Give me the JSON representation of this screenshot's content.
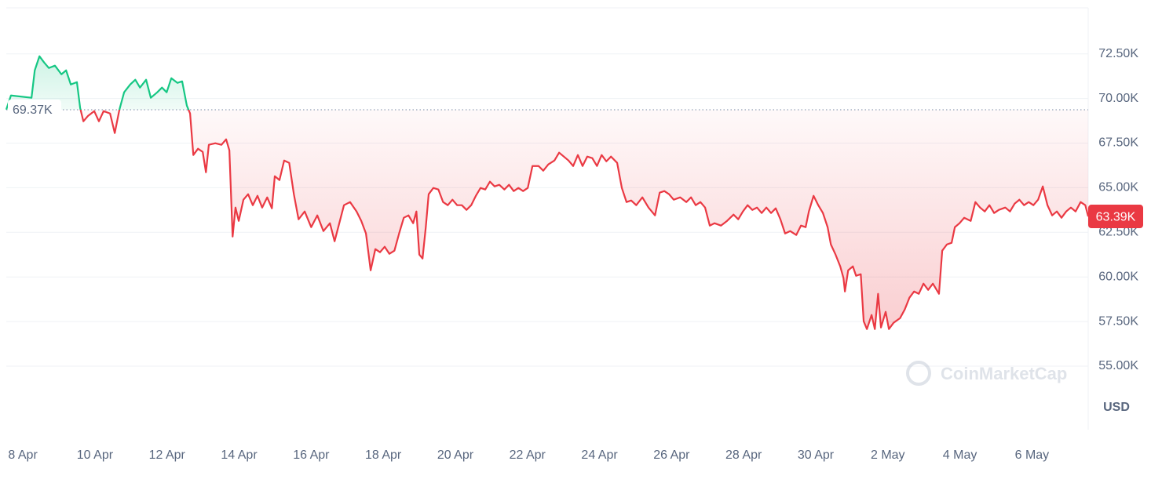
{
  "chart_data": {
    "type": "line",
    "x": [
      -0.46,
      -0.33,
      0.24,
      0.33,
      0.46,
      0.59,
      0.72,
      0.89,
      1.07,
      1.2,
      1.33,
      1.5,
      1.59,
      1.68,
      1.81,
      1.98,
      2.11,
      2.24,
      2.42,
      2.55,
      2.68,
      2.81,
      2.98,
      3.12,
      3.25,
      3.42,
      3.55,
      3.73,
      3.86,
      3.99,
      4.12,
      4.29,
      4.42,
      4.55,
      4.64,
      4.73,
      4.86,
      4.99,
      5.08,
      5.16,
      5.34,
      5.51,
      5.64,
      5.73,
      5.82,
      5.9,
      5.99,
      6.12,
      6.25,
      6.38,
      6.51,
      6.64,
      6.78,
      6.91,
      6.99,
      7.12,
      7.25,
      7.39,
      7.52,
      7.65,
      7.82,
      8.0,
      8.17,
      8.34,
      8.52,
      8.65,
      8.78,
      8.91,
      9.08,
      9.26,
      9.39,
      9.52,
      9.65,
      9.78,
      9.91,
      10.04,
      10.17,
      10.31,
      10.44,
      10.57,
      10.7,
      10.83,
      10.92,
      11.0,
      11.09,
      11.18,
      11.26,
      11.39,
      11.53,
      11.66,
      11.79,
      11.92,
      12.05,
      12.18,
      12.31,
      12.44,
      12.57,
      12.7,
      12.83,
      12.96,
      13.09,
      13.22,
      13.36,
      13.49,
      13.62,
      13.75,
      13.88,
      14.01,
      14.14,
      14.31,
      14.44,
      14.58,
      14.75,
      14.88,
      15.01,
      15.14,
      15.27,
      15.4,
      15.53,
      15.66,
      15.8,
      15.93,
      16.06,
      16.19,
      16.32,
      16.49,
      16.62,
      16.75,
      16.88,
      17.02,
      17.19,
      17.36,
      17.54,
      17.67,
      17.8,
      17.93,
      18.06,
      18.24,
      18.41,
      18.54,
      18.67,
      18.8,
      18.93,
      19.06,
      19.19,
      19.37,
      19.54,
      19.72,
      19.85,
      19.98,
      20.11,
      20.24,
      20.37,
      20.5,
      20.63,
      20.76,
      20.89,
      21.02,
      21.15,
      21.29,
      21.46,
      21.59,
      21.72,
      21.81,
      21.94,
      22.07,
      22.2,
      22.33,
      22.42,
      22.55,
      22.68,
      22.77,
      22.81,
      22.9,
      23.03,
      23.12,
      23.25,
      23.33,
      23.42,
      23.55,
      23.64,
      23.73,
      23.81,
      23.94,
      24.03,
      24.16,
      24.34,
      24.47,
      24.6,
      24.73,
      24.86,
      24.99,
      25.12,
      25.25,
      25.42,
      25.51,
      25.64,
      25.77,
      25.86,
      25.99,
      26.12,
      26.3,
      26.43,
      26.56,
      26.69,
      26.82,
      26.95,
      27.08,
      27.26,
      27.39,
      27.52,
      27.65,
      27.78,
      27.91,
      28.04,
      28.17,
      28.3,
      28.43,
      28.56,
      28.69,
      28.82,
      28.95,
      29.08,
      29.21,
      29.35,
      29.48,
      29.56
    ],
    "values": [
      69380,
      70171,
      70040,
      71577,
      72368,
      72017,
      71709,
      71841,
      71357,
      71577,
      70786,
      70918,
      69468,
      68721,
      69029,
      69292,
      68721,
      69292,
      69160,
      68062,
      69380,
      70347,
      70786,
      71050,
      70611,
      71050,
      70040,
      70347,
      70611,
      70347,
      71138,
      70874,
      70962,
      69600,
      69160,
      66832,
      67184,
      67009,
      65865,
      67403,
      67491,
      67403,
      67711,
      67095,
      62262,
      63888,
      63141,
      64327,
      64635,
      64020,
      64547,
      63888,
      64459,
      63844,
      65645,
      65426,
      66524,
      66393,
      64635,
      63229,
      63668,
      62789,
      63449,
      62569,
      63009,
      61998,
      63009,
      64020,
      64196,
      63668,
      63141,
      62437,
      60372,
      61559,
      61383,
      61691,
      61295,
      61471,
      62437,
      63317,
      63449,
      63009,
      63668,
      61251,
      61031,
      62789,
      64635,
      64987,
      64899,
      64196,
      64020,
      64327,
      64020,
      64020,
      63756,
      64020,
      64547,
      64987,
      64899,
      65338,
      65074,
      65162,
      64899,
      65162,
      64811,
      64987,
      64811,
      64987,
      66216,
      66216,
      65953,
      66305,
      66524,
      66964,
      66744,
      66524,
      66216,
      66832,
      66216,
      66744,
      66656,
      66216,
      66832,
      66480,
      66744,
      66393,
      64987,
      64196,
      64284,
      64020,
      64459,
      63888,
      63449,
      64723,
      64811,
      64635,
      64327,
      64459,
      64196,
      64459,
      64020,
      64196,
      63888,
      62877,
      63009,
      62877,
      63141,
      63492,
      63229,
      63668,
      64020,
      63756,
      63888,
      63580,
      63888,
      63580,
      63844,
      63229,
      62437,
      62569,
      62350,
      62877,
      62789,
      63668,
      64547,
      64020,
      63580,
      62789,
      61822,
      61251,
      60592,
      59933,
      59186,
      60372,
      60592,
      60065,
      60153,
      57517,
      57077,
      57868,
      57077,
      59054,
      57165,
      58044,
      57077,
      57429,
      57692,
      58176,
      58835,
      59186,
      59054,
      59625,
      59274,
      59625,
      59054,
      61471,
      61822,
      61910,
      62789,
      63009,
      63317,
      63141,
      64196,
      63888,
      63668,
      64020,
      63580,
      63756,
      63888,
      63668,
      64108,
      64327,
      64020,
      64196,
      64020,
      64327,
      65074,
      64020,
      63449,
      63668,
      63317,
      63668,
      63888,
      63668,
      64196,
      64020,
      63390
    ],
    "up_color": "#16c784",
    "down_color": "#ea3943",
    "reference": {
      "value": 69370,
      "label": "69.37K"
    },
    "current_price": {
      "value": 63390,
      "label": "63.39K"
    },
    "xlim": [
      -0.46,
      29.56
    ],
    "xticks": [
      {
        "value": 0,
        "label": "8 Apr"
      },
      {
        "value": 2,
        "label": "10 Apr"
      },
      {
        "value": 4,
        "label": "12 Apr"
      },
      {
        "value": 6,
        "label": "14 Apr"
      },
      {
        "value": 8,
        "label": "16 Apr"
      },
      {
        "value": 10,
        "label": "18 Apr"
      },
      {
        "value": 12,
        "label": "20 Apr"
      },
      {
        "value": 14,
        "label": "22 Apr"
      },
      {
        "value": 16,
        "label": "24 Apr"
      },
      {
        "value": 18,
        "label": "26 Apr"
      },
      {
        "value": 20,
        "label": "28 Apr"
      },
      {
        "value": 22,
        "label": "30 Apr"
      },
      {
        "value": 24,
        "label": "2 May"
      },
      {
        "value": 26,
        "label": "4 May"
      },
      {
        "value": 28,
        "label": "6 May"
      }
    ],
    "ylim": [
      51440,
      75080
    ],
    "yticks": [
      {
        "value": 55000,
        "label": "55.00K"
      },
      {
        "value": 57500,
        "label": "57.50K"
      },
      {
        "value": 60000,
        "label": "60.00K"
      },
      {
        "value": 62500,
        "label": "62.50K"
      },
      {
        "value": 65000,
        "label": "65.00K"
      },
      {
        "value": 67500,
        "label": "67.50K"
      },
      {
        "value": 70000,
        "label": "70.00K"
      },
      {
        "value": 72500,
        "label": "72.50K"
      }
    ],
    "grid": true,
    "unit": "USD",
    "watermark": "CoinMarketCap"
  }
}
